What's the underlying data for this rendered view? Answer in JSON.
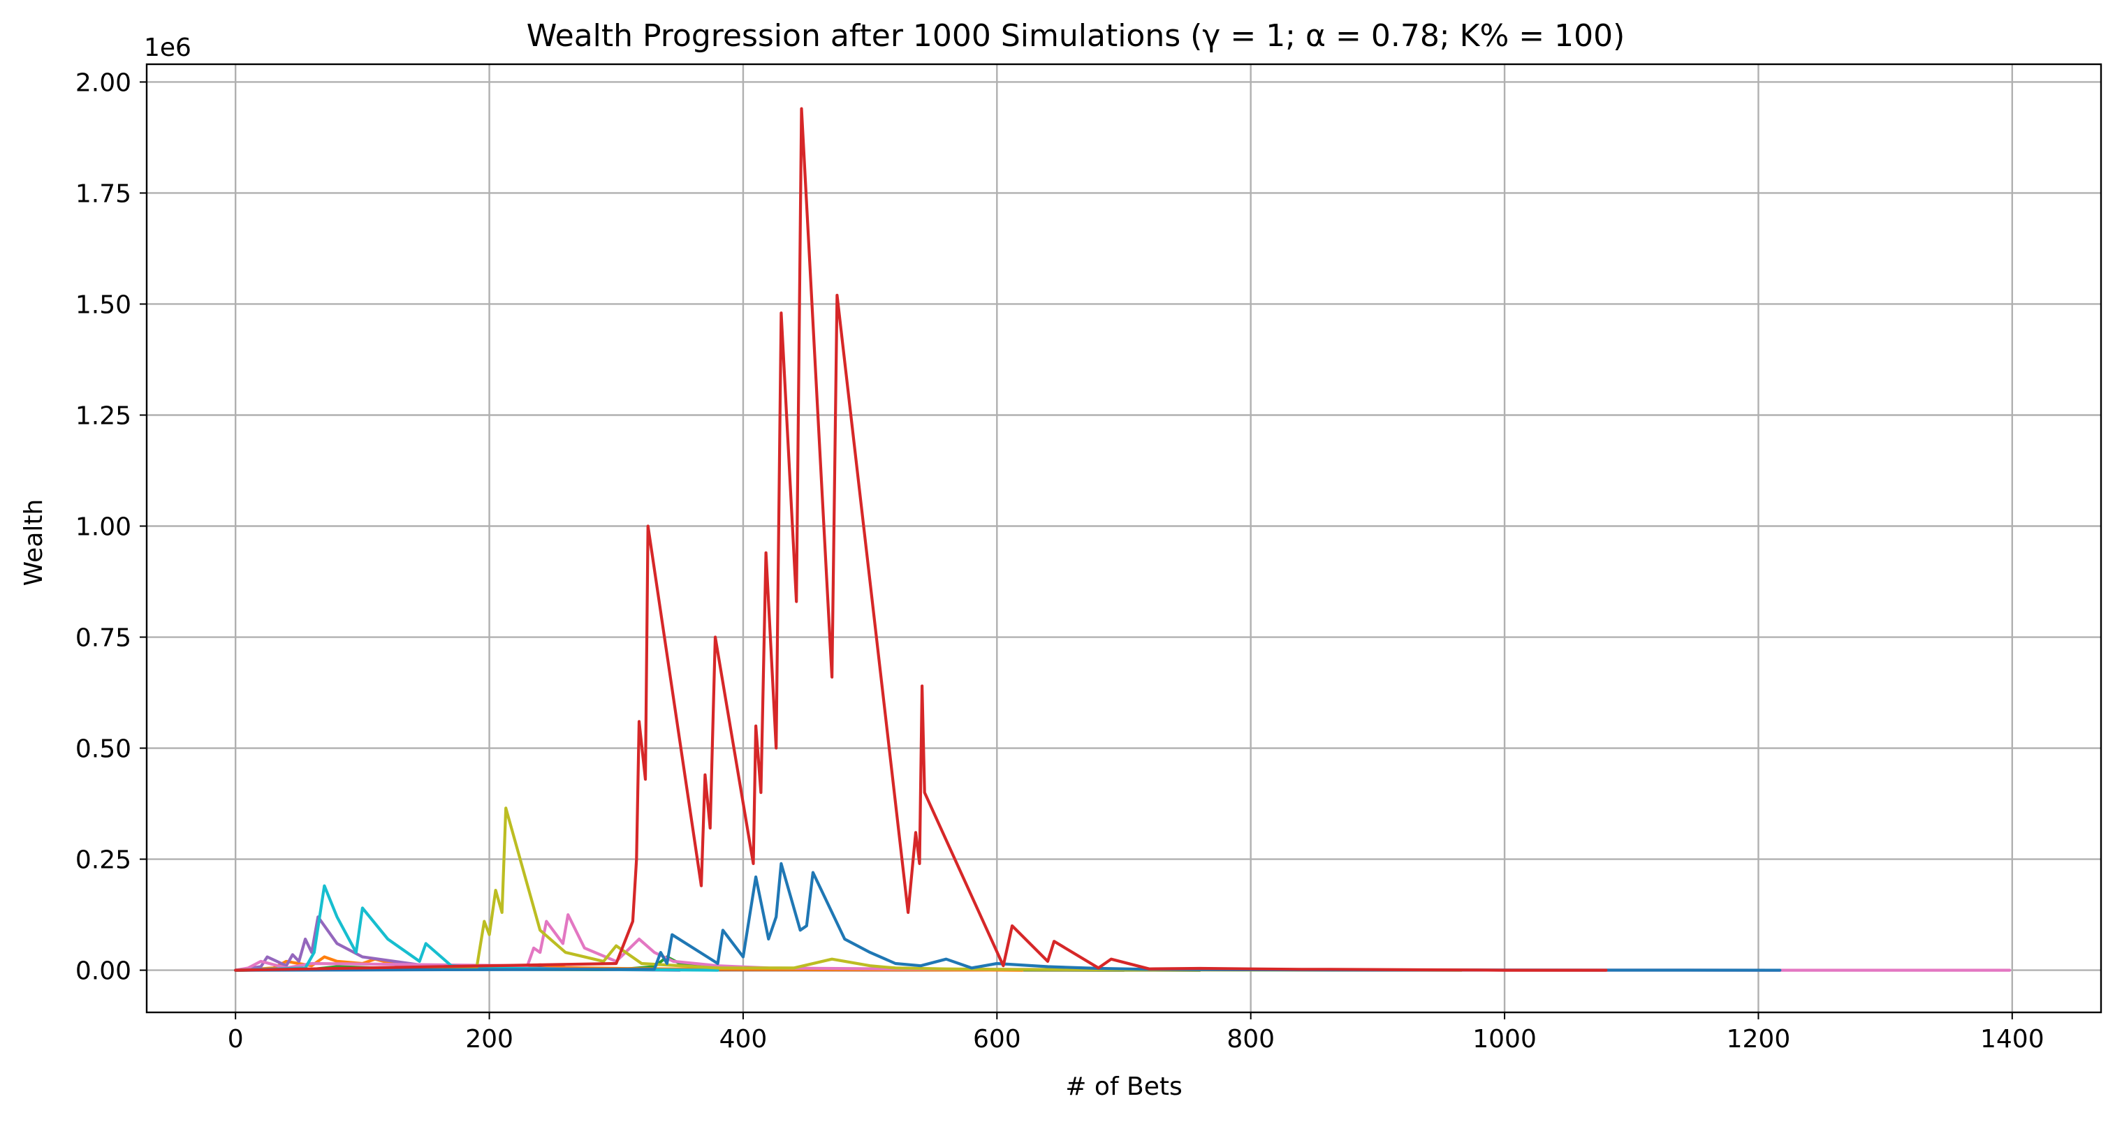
{
  "chart_data": {
    "type": "line",
    "title": "Wealth Progression after 1000 Simulations (γ = 1; α = 0.78; K% = 100)",
    "xlabel": "# of Bets",
    "ylabel": "Wealth",
    "y_offset_text": "1e6",
    "xlim": [
      -70,
      1470
    ],
    "ylim": [
      -95000,
      2040000
    ],
    "xticks": [
      0,
      200,
      400,
      600,
      800,
      1000,
      1200,
      1400
    ],
    "xtick_labels": [
      "0",
      "200",
      "400",
      "600",
      "800",
      "1000",
      "1200",
      "1400"
    ],
    "yticks": [
      0,
      250000,
      500000,
      750000,
      1000000,
      1250000,
      1500000,
      1750000,
      2000000
    ],
    "ytick_labels": [
      "0.00",
      "0.25",
      "0.50",
      "0.75",
      "1.00",
      "1.25",
      "1.50",
      "1.75",
      "2.00"
    ],
    "grid": true,
    "series": [
      {
        "color": "#d62728",
        "x": [
          0,
          300,
          313,
          316,
          318,
          323,
          325,
          367,
          370,
          374,
          378,
          408,
          410,
          414,
          418,
          426,
          430,
          442,
          446,
          470,
          474,
          530,
          536,
          539,
          541,
          543,
          605,
          612,
          640,
          645,
          680,
          690,
          720,
          760,
          800,
          840,
          860,
          920,
          980,
          1000,
          1080
        ],
        "values": [
          0,
          15000,
          110000,
          250000,
          560000,
          430000,
          1000000,
          190000,
          440000,
          320000,
          750000,
          240000,
          550000,
          400000,
          940000,
          500000,
          1480000,
          830000,
          1940000,
          660000,
          1520000,
          130000,
          310000,
          240000,
          640000,
          400000,
          10000,
          100000,
          20000,
          65000,
          5000,
          25000,
          3000,
          4000,
          3000,
          2000,
          2000,
          1000,
          500,
          0,
          0
        ]
      },
      {
        "color": "#1f77b4",
        "x": [
          0,
          330,
          335,
          340,
          344,
          380,
          384,
          400,
          405,
          410,
          420,
          426,
          430,
          445,
          450,
          455,
          480,
          500,
          520,
          540,
          560,
          580,
          600,
          640,
          680,
          720,
          760,
          800,
          860,
          900,
          1000,
          1080,
          1120,
          1217
        ],
        "values": [
          0,
          2000,
          40000,
          15000,
          80000,
          15000,
          90000,
          30000,
          120000,
          210000,
          70000,
          120000,
          240000,
          90000,
          100000,
          220000,
          70000,
          40000,
          15000,
          10000,
          25000,
          5000,
          15000,
          8000,
          4000,
          2000,
          1500,
          1000,
          500,
          300,
          200,
          100,
          50,
          0
        ]
      },
      {
        "color": "#bcbd22",
        "x": [
          0,
          190,
          196,
          200,
          205,
          210,
          213,
          240,
          260,
          290,
          300,
          320,
          380,
          440,
          470,
          500,
          520,
          560,
          600,
          680,
          760,
          820,
          870,
          920,
          966
        ],
        "values": [
          0,
          5000,
          110000,
          80000,
          180000,
          130000,
          365000,
          90000,
          40000,
          20000,
          55000,
          15000,
          5000,
          5000,
          25000,
          10000,
          5000,
          3000,
          2000,
          1000,
          500,
          300,
          100,
          50,
          0
        ]
      },
      {
        "color": "#17becf",
        "x": [
          0,
          55,
          62,
          70,
          80,
          95,
          100,
          120,
          145,
          150,
          170,
          200,
          260,
          320,
          380
        ],
        "values": [
          0,
          5000,
          40000,
          190000,
          120000,
          40000,
          140000,
          70000,
          20000,
          60000,
          10000,
          5000,
          2000,
          1000,
          0
        ]
      },
      {
        "color": "#e377c2",
        "x": [
          0,
          10,
          20,
          40,
          60,
          230,
          235,
          240,
          245,
          258,
          262,
          275,
          300,
          318,
          330,
          345,
          380,
          420,
          520,
          600,
          700,
          800,
          900,
          1000,
          1100,
          1217,
          1300,
          1398
        ],
        "values": [
          0,
          5000,
          20000,
          5000,
          15000,
          10000,
          50000,
          40000,
          110000,
          60000,
          125000,
          50000,
          20000,
          70000,
          40000,
          20000,
          10000,
          5000,
          3000,
          2000,
          1000,
          500,
          200,
          100,
          50,
          20,
          10,
          0
        ]
      },
      {
        "color": "#9467bd",
        "x": [
          0,
          20,
          25,
          40,
          45,
          50,
          55,
          60,
          65,
          80,
          100,
          150,
          220,
          280,
          300,
          350
        ],
        "values": [
          0,
          8000,
          30000,
          10000,
          35000,
          20000,
          70000,
          40000,
          120000,
          60000,
          30000,
          10000,
          5000,
          2000,
          1000,
          0
        ]
      },
      {
        "color": "#ff7f0e",
        "x": [
          0,
          30,
          40,
          60,
          70,
          80,
          100,
          110,
          130,
          150,
          200,
          240,
          260,
          300,
          340,
          400,
          460,
          520,
          580,
          620
        ],
        "values": [
          0,
          5000,
          20000,
          10000,
          30000,
          20000,
          15000,
          25000,
          10000,
          8000,
          5000,
          12000,
          6000,
          4000,
          3000,
          2000,
          1500,
          1000,
          500,
          0
        ]
      },
      {
        "color": "#2ca02c",
        "x": [
          0,
          60,
          80,
          120,
          160,
          200,
          300,
          330,
          340,
          350,
          360,
          380,
          420,
          500,
          600,
          700,
          760
        ],
        "values": [
          0,
          2000,
          8000,
          4000,
          3000,
          2000,
          1000,
          8000,
          30000,
          15000,
          12000,
          5000,
          3000,
          2000,
          1000,
          500,
          0
        ]
      },
      {
        "color": "#8c564b",
        "x": [
          0,
          100,
          150,
          200,
          250,
          300,
          370,
          380,
          450,
          500,
          600,
          650,
          700,
          760
        ],
        "values": [
          0,
          3000,
          5000,
          4000,
          6000,
          2000,
          1000,
          500,
          400,
          300,
          200,
          100,
          50,
          0
        ]
      },
      {
        "color": "#7f7f7f",
        "x": [
          0,
          100,
          200,
          300,
          400,
          500,
          600,
          700
        ],
        "values": [
          0,
          2000,
          3000,
          1500,
          1000,
          800,
          500,
          0
        ]
      }
    ]
  }
}
